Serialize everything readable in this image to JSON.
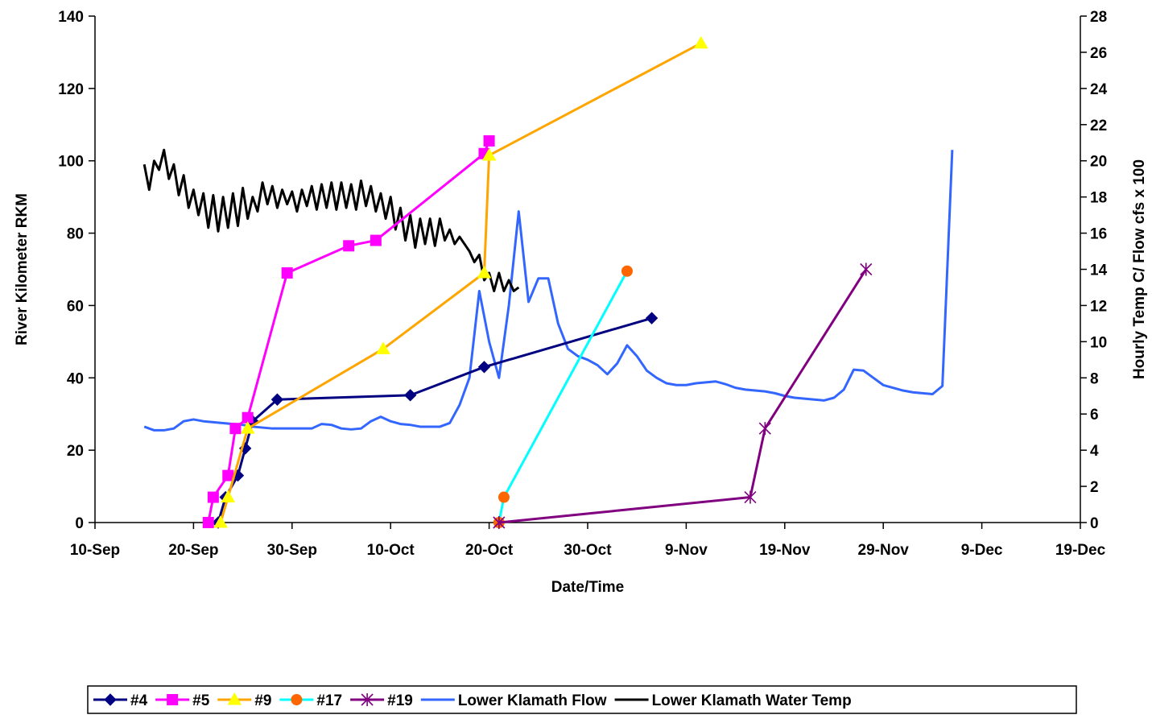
{
  "chart_data": {
    "type": "line",
    "title": "",
    "xlabel": "Date/Time",
    "ylabel": "River Kilometer RKM",
    "y2label": "Hourly Temp C/ Flow cfs x 100",
    "x_axis": {
      "type": "date",
      "range": [
        "2005-09-10",
        "2005-12-19"
      ],
      "tick_dates": [
        "2005-09-10",
        "2005-09-20",
        "2005-09-30",
        "2005-10-10",
        "2005-10-20",
        "2005-10-30",
        "2005-11-09",
        "2005-11-19",
        "2005-11-29",
        "2005-12-09",
        "2005-12-19"
      ],
      "tick_labels": [
        "10-Sep",
        "20-Sep",
        "30-Sep",
        "10-Oct",
        "20-Oct",
        "30-Oct",
        "9-Nov",
        "19-Nov",
        "29-Nov",
        "9-Dec",
        "19-Dec"
      ]
    },
    "y_axis": {
      "range": [
        0,
        140
      ],
      "ticks": [
        0,
        20,
        40,
        60,
        80,
        100,
        120,
        140
      ]
    },
    "y2_axis": {
      "range": [
        0,
        28
      ],
      "ticks": [
        0,
        2,
        4,
        6,
        8,
        10,
        12,
        14,
        16,
        18,
        20,
        22,
        24,
        26,
        28
      ]
    },
    "grid": false,
    "legend_position": "bottom",
    "series": [
      {
        "name": "#4",
        "axis": "left",
        "color": "#000080",
        "marker": "diamond",
        "points": [
          [
            "2005-09-22 12:00",
            0
          ],
          [
            "2005-09-23 06:00",
            7
          ],
          [
            "2005-09-24 12:00",
            13
          ],
          [
            "2005-09-25 06:00",
            20.5
          ],
          [
            "2005-09-26 00:00",
            28
          ],
          [
            "2005-09-28 12:00",
            34
          ],
          [
            "2005-10-12 00:00",
            35.2
          ],
          [
            "2005-10-19 12:00",
            43
          ],
          [
            "2005-11-05 12:00",
            56.5
          ]
        ]
      },
      {
        "name": "#5",
        "axis": "left",
        "color": "#FF00FF",
        "marker": "square",
        "points": [
          [
            "2005-09-21 12:00",
            0
          ],
          [
            "2005-09-22 00:00",
            7
          ],
          [
            "2005-09-23 12:00",
            13
          ],
          [
            "2005-09-24 06:00",
            26
          ],
          [
            "2005-09-25 12:00",
            29
          ],
          [
            "2005-09-29 12:00",
            69
          ],
          [
            "2005-10-05 18:00",
            76.5
          ],
          [
            "2005-10-08 12:00",
            78
          ],
          [
            "2005-10-19 12:00",
            102
          ],
          [
            "2005-10-20 00:00",
            105.5
          ]
        ]
      },
      {
        "name": "#9",
        "axis": "left",
        "color": "#FFA500",
        "marker": "triangle",
        "points": [
          [
            "2005-09-22 18:00",
            0
          ],
          [
            "2005-09-23 12:00",
            7
          ],
          [
            "2005-09-25 12:00",
            26
          ],
          [
            "2005-10-09 06:00",
            48
          ],
          [
            "2005-10-19 12:00",
            69
          ],
          [
            "2005-10-20 00:00",
            101.5
          ],
          [
            "2005-11-10 12:00",
            132.5
          ]
        ]
      },
      {
        "name": "#17",
        "axis": "left",
        "color": "#00FFFF",
        "marker": "circle",
        "points": [
          [
            "2005-10-21 00:00",
            0
          ],
          [
            "2005-10-21 12:00",
            7
          ],
          [
            "2005-11-03 00:00",
            69.5
          ]
        ]
      },
      {
        "name": "#19",
        "axis": "left",
        "color": "#800080",
        "marker": "asterisk",
        "points": [
          [
            "2005-10-21 00:00",
            0
          ],
          [
            "2005-11-15 12:00",
            7
          ],
          [
            "2005-11-17 00:00",
            26
          ],
          [
            "2005-11-27 06:00",
            70
          ]
        ]
      },
      {
        "name": "Lower Klamath Flow",
        "axis": "right",
        "color": "#3366FF",
        "marker": "none",
        "points": [
          [
            "2005-09-15",
            5.3
          ],
          [
            "2005-09-16",
            5.1
          ],
          [
            "2005-09-17",
            5.1
          ],
          [
            "2005-09-18",
            5.2
          ],
          [
            "2005-09-19",
            5.6
          ],
          [
            "2005-09-20",
            5.7
          ],
          [
            "2005-09-21",
            5.6
          ],
          [
            "2005-09-22",
            5.55
          ],
          [
            "2005-09-23",
            5.5
          ],
          [
            "2005-09-24",
            5.45
          ],
          [
            "2005-09-25",
            5.4
          ],
          [
            "2005-09-26",
            5.3
          ],
          [
            "2005-09-27",
            5.25
          ],
          [
            "2005-09-28",
            5.2
          ],
          [
            "2005-09-29",
            5.2
          ],
          [
            "2005-09-30",
            5.2
          ],
          [
            "2005-10-01",
            5.2
          ],
          [
            "2005-10-02",
            5.2
          ],
          [
            "2005-10-03",
            5.45
          ],
          [
            "2005-10-04",
            5.4
          ],
          [
            "2005-10-05",
            5.2
          ],
          [
            "2005-10-06",
            5.15
          ],
          [
            "2005-10-07",
            5.2
          ],
          [
            "2005-10-08",
            5.6
          ],
          [
            "2005-10-09",
            5.85
          ],
          [
            "2005-10-10",
            5.6
          ],
          [
            "2005-10-11",
            5.45
          ],
          [
            "2005-10-12",
            5.4
          ],
          [
            "2005-10-13",
            5.3
          ],
          [
            "2005-10-14",
            5.3
          ],
          [
            "2005-10-15",
            5.3
          ],
          [
            "2005-10-16",
            5.5
          ],
          [
            "2005-10-17",
            6.5
          ],
          [
            "2005-10-18",
            8
          ],
          [
            "2005-10-19",
            12.8
          ],
          [
            "2005-10-20",
            10
          ],
          [
            "2005-10-21",
            8
          ],
          [
            "2005-10-22",
            12
          ],
          [
            "2005-10-23",
            17.2
          ],
          [
            "2005-10-24",
            12.2
          ],
          [
            "2005-10-25",
            13.5
          ],
          [
            "2005-10-26",
            13.5
          ],
          [
            "2005-10-27",
            11
          ],
          [
            "2005-10-28",
            9.6
          ],
          [
            "2005-10-29",
            9.2
          ],
          [
            "2005-10-30",
            9
          ],
          [
            "2005-10-31",
            8.7
          ],
          [
            "2005-11-01",
            8.2
          ],
          [
            "2005-11-02",
            8.8
          ],
          [
            "2005-11-03",
            9.8
          ],
          [
            "2005-11-04",
            9.2
          ],
          [
            "2005-11-05",
            8.4
          ],
          [
            "2005-11-06",
            8
          ],
          [
            "2005-11-07",
            7.7
          ],
          [
            "2005-11-08",
            7.6
          ],
          [
            "2005-11-09",
            7.6
          ],
          [
            "2005-11-10",
            7.7
          ],
          [
            "2005-11-11",
            7.75
          ],
          [
            "2005-11-12",
            7.8
          ],
          [
            "2005-11-13",
            7.65
          ],
          [
            "2005-11-14",
            7.45
          ],
          [
            "2005-11-15",
            7.35
          ],
          [
            "2005-11-16",
            7.3
          ],
          [
            "2005-11-17",
            7.25
          ],
          [
            "2005-11-18",
            7.15
          ],
          [
            "2005-11-19",
            7
          ],
          [
            "2005-11-20",
            6.9
          ],
          [
            "2005-11-21",
            6.85
          ],
          [
            "2005-11-22",
            6.8
          ],
          [
            "2005-11-23",
            6.75
          ],
          [
            "2005-11-24",
            6.9
          ],
          [
            "2005-11-25",
            7.35
          ],
          [
            "2005-11-26",
            8.45
          ],
          [
            "2005-11-27",
            8.4
          ],
          [
            "2005-11-28",
            8
          ],
          [
            "2005-11-29",
            7.6
          ],
          [
            "2005-11-30",
            7.45
          ],
          [
            "2005-12-01",
            7.3
          ],
          [
            "2005-12-02",
            7.2
          ],
          [
            "2005-12-03",
            7.15
          ],
          [
            "2005-12-04",
            7.1
          ],
          [
            "2005-12-05",
            7.55
          ],
          [
            "2005-12-06",
            20.6
          ]
        ]
      },
      {
        "name": "Lower Klamath Water Temp",
        "axis": "right",
        "color": "#000000",
        "marker": "none",
        "points": [
          [
            "2005-09-15 00:00",
            19.8
          ],
          [
            "2005-09-15 12:00",
            18.4
          ],
          [
            "2005-09-16 00:00",
            20
          ],
          [
            "2005-09-16 12:00",
            19.5
          ],
          [
            "2005-09-17 00:00",
            20.6
          ],
          [
            "2005-09-17 12:00",
            19
          ],
          [
            "2005-09-18 00:00",
            19.8
          ],
          [
            "2005-09-18 12:00",
            18.1
          ],
          [
            "2005-09-19 00:00",
            19.2
          ],
          [
            "2005-09-19 12:00",
            17.4
          ],
          [
            "2005-09-20 00:00",
            18.4
          ],
          [
            "2005-09-20 12:00",
            17
          ],
          [
            "2005-09-21 00:00",
            18.2
          ],
          [
            "2005-09-21 12:00",
            16.3
          ],
          [
            "2005-09-22 00:00",
            18.1
          ],
          [
            "2005-09-22 12:00",
            16.1
          ],
          [
            "2005-09-23 00:00",
            18
          ],
          [
            "2005-09-23 12:00",
            16.3
          ],
          [
            "2005-09-24 00:00",
            18.2
          ],
          [
            "2005-09-24 12:00",
            16.4
          ],
          [
            "2005-09-25 00:00",
            18.5
          ],
          [
            "2005-09-25 12:00",
            16.8
          ],
          [
            "2005-09-26 00:00",
            18
          ],
          [
            "2005-09-26 12:00",
            17.2
          ],
          [
            "2005-09-27 00:00",
            18.8
          ],
          [
            "2005-09-27 12:00",
            17.6
          ],
          [
            "2005-09-28 00:00",
            18.6
          ],
          [
            "2005-09-28 12:00",
            17.4
          ],
          [
            "2005-09-29 00:00",
            18.4
          ],
          [
            "2005-09-29 12:00",
            17.6
          ],
          [
            "2005-09-30 00:00",
            18.3
          ],
          [
            "2005-09-30 12:00",
            17.2
          ],
          [
            "2005-10-01 00:00",
            18.4
          ],
          [
            "2005-10-01 12:00",
            17.5
          ],
          [
            "2005-10-02 00:00",
            18.6
          ],
          [
            "2005-10-02 12:00",
            17.3
          ],
          [
            "2005-10-03 00:00",
            18.7
          ],
          [
            "2005-10-03 12:00",
            17.4
          ],
          [
            "2005-10-04 00:00",
            18.8
          ],
          [
            "2005-10-04 12:00",
            17.3
          ],
          [
            "2005-10-05 00:00",
            18.8
          ],
          [
            "2005-10-05 12:00",
            17.4
          ],
          [
            "2005-10-06 00:00",
            18.7
          ],
          [
            "2005-10-06 12:00",
            17.3
          ],
          [
            "2005-10-07 00:00",
            18.9
          ],
          [
            "2005-10-07 12:00",
            17.5
          ],
          [
            "2005-10-08 00:00",
            18.6
          ],
          [
            "2005-10-08 12:00",
            17.2
          ],
          [
            "2005-10-09 00:00",
            18.2
          ],
          [
            "2005-10-09 12:00",
            16.8
          ],
          [
            "2005-10-10 00:00",
            18
          ],
          [
            "2005-10-10 12:00",
            16.2
          ],
          [
            "2005-10-11 00:00",
            17.4
          ],
          [
            "2005-10-11 12:00",
            15.6
          ],
          [
            "2005-10-12 00:00",
            17
          ],
          [
            "2005-10-12 12:00",
            15.2
          ],
          [
            "2005-10-13 00:00",
            16.8
          ],
          [
            "2005-10-13 12:00",
            15.4
          ],
          [
            "2005-10-14 00:00",
            16.8
          ],
          [
            "2005-10-14 12:00",
            15.3
          ],
          [
            "2005-10-15 00:00",
            16.8
          ],
          [
            "2005-10-15 12:00",
            15.6
          ],
          [
            "2005-10-16 00:00",
            16.2
          ],
          [
            "2005-10-16 12:00",
            15.4
          ],
          [
            "2005-10-17 00:00",
            15.8
          ],
          [
            "2005-10-17 12:00",
            15.4
          ],
          [
            "2005-10-18 00:00",
            15
          ],
          [
            "2005-10-18 12:00",
            14.4
          ],
          [
            "2005-10-19 00:00",
            14.8
          ],
          [
            "2005-10-19 12:00",
            13.4
          ],
          [
            "2005-10-20 00:00",
            13.8
          ],
          [
            "2005-10-20 12:00",
            12.8
          ],
          [
            "2005-10-21 00:00",
            13.8
          ],
          [
            "2005-10-21 12:00",
            12.8
          ],
          [
            "2005-10-22 00:00",
            13.4
          ],
          [
            "2005-10-22 12:00",
            12.8
          ],
          [
            "2005-10-23 00:00",
            13
          ]
        ]
      }
    ]
  }
}
